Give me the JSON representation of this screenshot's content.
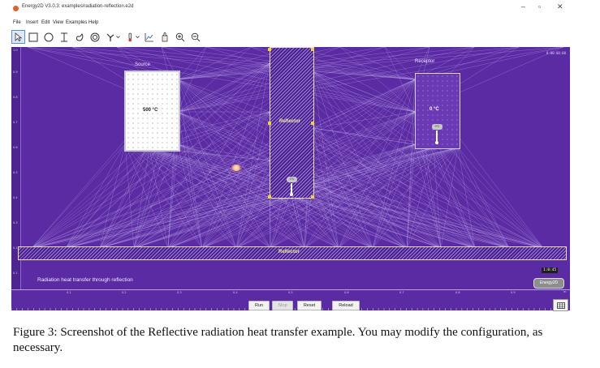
{
  "window": {
    "title": "Energy2D V3.0.3: examples/radiation-reflection.e2d",
    "minimize": "–",
    "maximize": "▫",
    "close": "✕"
  },
  "menu": [
    "File",
    "Insert",
    "Edit",
    "View",
    "Examples",
    "Help"
  ],
  "toolbar": {
    "icons": [
      "select-arrow-icon",
      "rectangle-icon",
      "ellipse-icon",
      "polygon-icon",
      "blob-icon",
      "annulus-icon",
      "fan-icon",
      "thermometer-icon",
      "graph-icon",
      "heat-flux-icon",
      "zoom-in-icon",
      "zoom-out-icon"
    ]
  },
  "simulation": {
    "clock": "0:00:00:00",
    "left_ruler_labels": [
      "1.0",
      "0.9",
      "0.8",
      "0.7",
      "0.6",
      "0.5",
      "0.4",
      "0.3",
      "0.2",
      "0.1"
    ],
    "bottom_ruler_labels": [
      "0.1",
      "0.2",
      "0.3",
      "0.4",
      "0.5",
      "0.6",
      "0.7",
      "0.8",
      "0.9"
    ],
    "bottom_ruler_unit": "m",
    "source_label": "Source",
    "source_temp": "500 °C",
    "receptor_label": "Receptor",
    "receptor_temp": "0 °C",
    "reflector_vertical_label": "Reflector",
    "reflector_horizontal_label": "Reflector",
    "sensor_receptor_reading": "0°C",
    "sensor_reflector_reading": "0°C",
    "annotation": "Radiation heat transfer through reflection",
    "time_readout": "1:0:45",
    "brand": "Energy2D"
  },
  "controls": {
    "run": "Run",
    "stop": "Stop",
    "reset": "Reset",
    "reload": "Reload"
  },
  "caption": "Figure 3: Screenshot of the Reflective radiation heat transfer example. You may modify the configuration, as necessary."
}
